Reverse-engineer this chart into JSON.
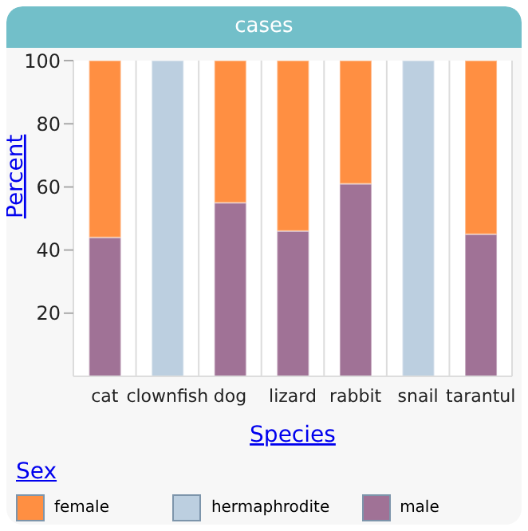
{
  "chart_data": {
    "type": "bar",
    "title": "cases",
    "xlabel": "Species",
    "ylabel": "Percent",
    "legend_title": "Sex",
    "stacked": true,
    "categories": [
      "cat",
      "clownfish",
      "dog",
      "lizard",
      "rabbit",
      "snail",
      "tarantul"
    ],
    "series": [
      {
        "name": "male",
        "color": "#a07296",
        "values": [
          44,
          null,
          55,
          46,
          61,
          null,
          45
        ]
      },
      {
        "name": "hermaphrodite",
        "color": "#bccfe0",
        "values": [
          null,
          100,
          null,
          null,
          null,
          100,
          null
        ]
      },
      {
        "name": "female",
        "color": "#ff8f42",
        "values": [
          56,
          null,
          45,
          54,
          39,
          null,
          55
        ]
      }
    ],
    "ylim": [
      0,
      100
    ],
    "yticks": [
      20,
      40,
      60,
      80,
      100
    ],
    "grid": "x",
    "legend": "bottom left"
  }
}
